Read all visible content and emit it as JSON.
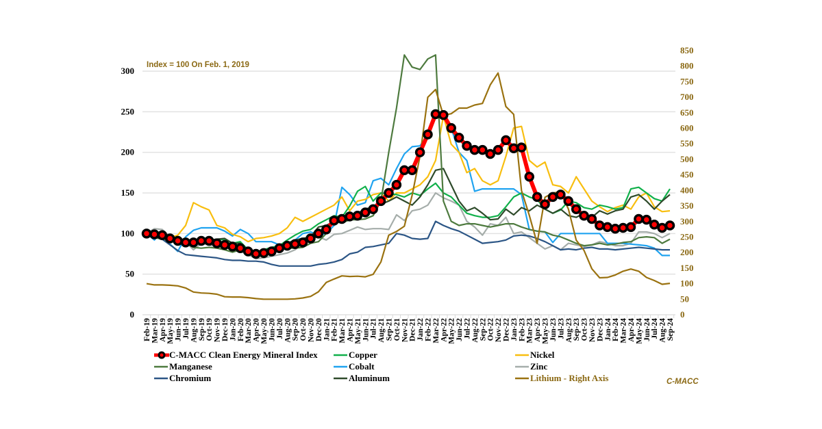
{
  "chart_data": {
    "type": "line",
    "title": "",
    "annotation": "Index = 100 On Feb. 1, 2019",
    "brand": "C-MACC",
    "xlabel": "",
    "ylabel_left": "",
    "ylabel_right": "",
    "ylim_left": [
      0,
      300
    ],
    "yticks_left": [
      0,
      50,
      100,
      150,
      200,
      250,
      300
    ],
    "ylim_right": [
      0,
      850
    ],
    "yticks_right": [
      0,
      50,
      100,
      150,
      200,
      250,
      300,
      350,
      400,
      450,
      500,
      550,
      600,
      650,
      700,
      750,
      800,
      850
    ],
    "grid": true,
    "legend_position": "bottom",
    "x": [
      "Feb-19",
      "Mar-19",
      "Apr-19",
      "May-19",
      "Jun-19",
      "Jul-19",
      "Aug-19",
      "Sep-19",
      "Oct-19",
      "Nov-19",
      "Dec-19",
      "Jan-20",
      "Feb-20",
      "Mar-20",
      "Apr-20",
      "May-20",
      "Jun-20",
      "Jul-20",
      "Aug-20",
      "Sep-20",
      "Oct-20",
      "Nov-20",
      "Dec-20",
      "Jan-21",
      "Feb-21",
      "Mar-21",
      "Apr-21",
      "May-21",
      "Jun-21",
      "Jul-21",
      "Aug-21",
      "Sep-21",
      "Oct-21",
      "Nov-21",
      "Dec-21",
      "Jan-22",
      "Feb-22",
      "Mar-22",
      "Apr-22",
      "May-22",
      "Jun-22",
      "Jul-22",
      "Aug-22",
      "Sep-22",
      "Oct-22",
      "Nov-22",
      "Dec-22",
      "Jan-23",
      "Feb-23",
      "Mar-23",
      "Apr-23",
      "May-23",
      "Jun-23",
      "Jul-23",
      "Aug-23",
      "Sep-23",
      "Oct-23",
      "Nov-23",
      "Dec-23",
      "Jan-24",
      "Feb-24",
      "Mar-24",
      "Apr-24",
      "May-24",
      "Jun-24",
      "Jul-24",
      "Aug-24",
      "Sep-24"
    ],
    "series": [
      {
        "name": "Zinc",
        "color": "#A5ADAA",
        "axis": "left",
        "width": 2.2,
        "values": [
          100,
          106,
          105,
          96,
          93,
          90,
          80,
          88,
          86,
          84,
          82,
          82,
          78,
          74,
          69,
          70,
          72,
          74,
          76,
          80,
          88,
          94,
          96,
          92,
          99,
          100,
          104,
          108,
          105,
          106,
          106,
          105,
          123,
          116,
          128,
          130,
          135,
          150,
          144,
          140,
          135,
          115,
          108,
          98,
          112,
          110,
          120,
          100,
          102,
          95,
          88,
          81,
          85,
          80,
          88,
          86,
          84,
          86,
          90,
          88,
          85,
          85,
          88,
          102,
          102,
          100,
          95,
          100
        ]
      },
      {
        "name": "Cobalt",
        "color": "#1FA3F0",
        "axis": "left",
        "width": 2.2,
        "values": [
          100,
          92,
          103,
          87,
          78,
          96,
          104,
          107,
          107,
          107,
          103,
          97,
          105,
          100,
          90,
          90,
          90,
          86,
          88,
          92,
          100,
          102,
          98,
          100,
          110,
          157,
          148,
          135,
          138,
          165,
          168,
          160,
          180,
          198,
          207,
          208,
          222,
          247,
          248,
          230,
          200,
          190,
          152,
          155,
          155,
          155,
          155,
          155,
          148,
          105,
          103,
          102,
          89,
          100,
          100,
          100,
          100,
          100,
          100,
          88,
          88,
          88,
          87,
          86,
          85,
          82,
          73,
          73
        ]
      },
      {
        "name": "Nickel",
        "color": "#F8BE0F",
        "axis": "left",
        "width": 2.2,
        "values": [
          100,
          96,
          98,
          95,
          98,
          110,
          138,
          133,
          129,
          110,
          107,
          99,
          96,
          90,
          94,
          95,
          97,
          100,
          107,
          120,
          115,
          120,
          125,
          130,
          135,
          145,
          128,
          140,
          142,
          148,
          150,
          140,
          150,
          150,
          155,
          160,
          170,
          190,
          245,
          210,
          200,
          175,
          180,
          165,
          160,
          165,
          195,
          230,
          232,
          190,
          182,
          188,
          160,
          158,
          150,
          170,
          155,
          140,
          133,
          127,
          132,
          135,
          130,
          145,
          150,
          133,
          127,
          128
        ]
      },
      {
        "name": "Copper",
        "color": "#10B04A",
        "axis": "left",
        "width": 2.2,
        "values": [
          100,
          97,
          95,
          92,
          92,
          90,
          88,
          90,
          92,
          92,
          93,
          88,
          90,
          80,
          76,
          80,
          83,
          85,
          92,
          98,
          103,
          105,
          112,
          117,
          122,
          120,
          134,
          152,
          158,
          140,
          150,
          149,
          148,
          145,
          150,
          147,
          155,
          162,
          150,
          145,
          135,
          125,
          122,
          120,
          120,
          122,
          133,
          145,
          150,
          145,
          142,
          130,
          125,
          129,
          140,
          138,
          132,
          130,
          135,
          133,
          130,
          132,
          155,
          157,
          150,
          143,
          140,
          155
        ]
      },
      {
        "name": "Aluminum",
        "color": "#2E4A2A",
        "axis": "left",
        "width": 2.2,
        "values": [
          100,
          98,
          96,
          93,
          92,
          93,
          90,
          90,
          92,
          93,
          94,
          88,
          88,
          77,
          74,
          76,
          80,
          82,
          88,
          92,
          94,
          96,
          108,
          110,
          115,
          120,
          120,
          125,
          130,
          133,
          136,
          140,
          145,
          140,
          135,
          145,
          160,
          178,
          180,
          160,
          140,
          128,
          132,
          125,
          117,
          118,
          130,
          123,
          132,
          128,
          135,
          130,
          125,
          130,
          122,
          120,
          125,
          120,
          128,
          124,
          128,
          130,
          145,
          148,
          140,
          130,
          140,
          148
        ]
      },
      {
        "name": "Manganese",
        "color": "#4D7A3E",
        "axis": "left",
        "width": 2.2,
        "values": [
          100,
          95,
          93,
          90,
          90,
          88,
          83,
          82,
          83,
          82,
          80,
          77,
          80,
          78,
          75,
          78,
          80,
          85,
          82,
          82,
          83,
          88,
          90,
          100,
          115,
          113,
          117,
          117,
          118,
          122,
          140,
          200,
          255,
          320,
          305,
          302,
          315,
          320,
          140,
          115,
          110,
          112,
          112,
          110,
          108,
          110,
          112,
          112,
          108,
          105,
          103,
          102,
          98,
          96,
          92,
          88,
          85,
          86,
          88,
          86,
          87,
          89,
          90,
          95,
          96,
          95,
          88,
          93
        ]
      },
      {
        "name": "Chromium",
        "color": "#2B5585",
        "axis": "left",
        "width": 2.2,
        "values": [
          100,
          97,
          93,
          86,
          79,
          74,
          73,
          72,
          71,
          70,
          68,
          67,
          67,
          66,
          66,
          65,
          62,
          60,
          60,
          60,
          60,
          60,
          62,
          63,
          65,
          68,
          75,
          77,
          83,
          84,
          86,
          88,
          100,
          98,
          94,
          93,
          94,
          115,
          110,
          106,
          103,
          98,
          93,
          88,
          89,
          90,
          92,
          97,
          98,
          97,
          94,
          90,
          85,
          80,
          81,
          80,
          82,
          83,
          81,
          81,
          80,
          81,
          82,
          83,
          82,
          81,
          80,
          80
        ]
      },
      {
        "name": "Lithium - Right Axis",
        "color": "#9A7210",
        "axis": "right",
        "width": 2.2,
        "values": [
          100,
          96,
          96,
          95,
          93,
          86,
          73,
          70,
          69,
          66,
          58,
          57,
          57,
          55,
          52,
          50,
          50,
          50,
          50,
          51,
          54,
          59,
          74,
          104,
          115,
          125,
          123,
          124,
          122,
          130,
          170,
          256,
          268,
          285,
          385,
          510,
          700,
          725,
          642,
          647,
          665,
          665,
          675,
          680,
          740,
          778,
          670,
          645,
          400,
          320,
          230,
          378,
          392,
          395,
          340,
          240,
          207,
          148,
          119,
          120,
          128,
          140,
          147,
          140,
          120,
          110,
          98,
          101
        ]
      },
      {
        "name": "C-MACC Clean Energy Mineral Index",
        "color": "#FF0000",
        "marker": "circle",
        "marker_color": "#000000",
        "axis": "left",
        "width": 6,
        "values": [
          100,
          99,
          98,
          94,
          91,
          89,
          89,
          91,
          91,
          88,
          86,
          84,
          82,
          78,
          75,
          76,
          78,
          82,
          85,
          87,
          89,
          94,
          100,
          105,
          116,
          118,
          121,
          122,
          126,
          130,
          140,
          150,
          160,
          178,
          178,
          200,
          222,
          247,
          246,
          230,
          218,
          208,
          203,
          203,
          198,
          203,
          215,
          205,
          206,
          170,
          145,
          136,
          145,
          148,
          140,
          130,
          122,
          118,
          110,
          108,
          106,
          107,
          108,
          118,
          117,
          111,
          107,
          110
        ]
      }
    ]
  }
}
